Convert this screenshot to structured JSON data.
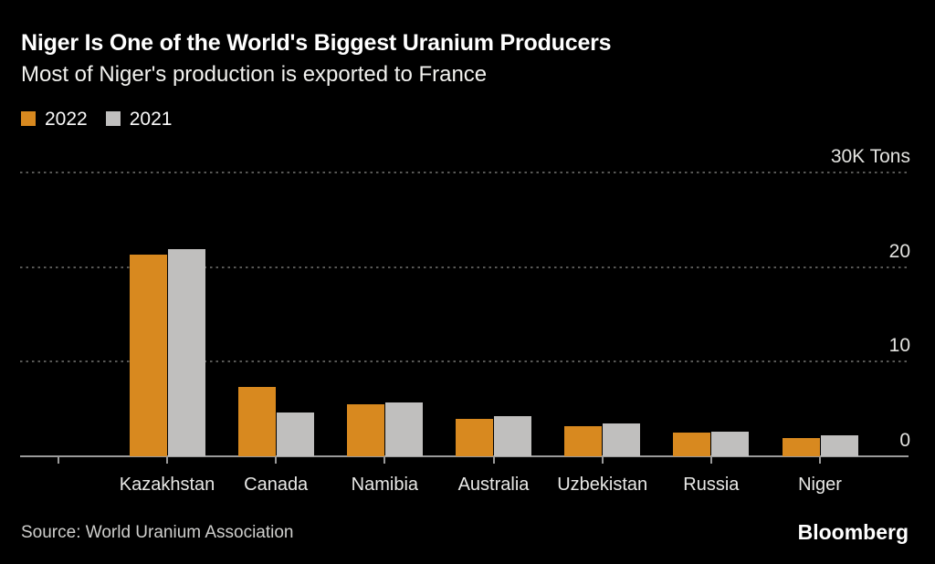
{
  "header": {
    "title": "Niger Is One of the World's Biggest Uranium Producers",
    "subtitle": "Most of Niger's production is exported to France"
  },
  "legend": [
    {
      "label": "2022",
      "color": "#d8891f"
    },
    {
      "label": "2021",
      "color": "#c0bfbe"
    }
  ],
  "chart_data": {
    "type": "bar",
    "title": "Niger Is One of the World's Biggest Uranium Producers",
    "subtitle": "Most of Niger's production is exported to France",
    "categories": [
      "Kazakhstan",
      "Canada",
      "Namibia",
      "Australia",
      "Uzbekistan",
      "Russia",
      "Niger"
    ],
    "series": [
      {
        "name": "2022",
        "color": "#d8891f",
        "values": [
          21.3,
          7.3,
          5.5,
          4.0,
          3.2,
          2.5,
          1.9
        ]
      },
      {
        "name": "2021",
        "color": "#c0bfbe",
        "values": [
          21.9,
          4.6,
          5.7,
          4.2,
          3.5,
          2.6,
          2.2
        ]
      }
    ],
    "unit": "thousand tons",
    "ylabel": "",
    "xlabel": "",
    "ylim": [
      0,
      30
    ],
    "yticks": [
      {
        "value": 30,
        "label": "30K Tons"
      },
      {
        "value": 20,
        "label": "20"
      },
      {
        "value": 10,
        "label": "10"
      },
      {
        "value": 0,
        "label": "0"
      }
    ],
    "grid": "horizontal dotted",
    "legend_position": "top-left"
  },
  "footer": {
    "source": "Source: World Uranium Association",
    "brand": "Bloomberg"
  },
  "colors": {
    "background": "#000000",
    "bar_2022": "#d8891f",
    "bar_2021": "#c0bfbe",
    "gridline": "#585856",
    "axis_line": "#9a9a9a",
    "title_text": "#ffffff",
    "subtitle_text": "#f2f2ef",
    "axis_label_text": "#e3e3e0",
    "category_label_text": "#e8e8e6",
    "source_text": "#cfcfcd",
    "brand_text": "#ffffff"
  }
}
